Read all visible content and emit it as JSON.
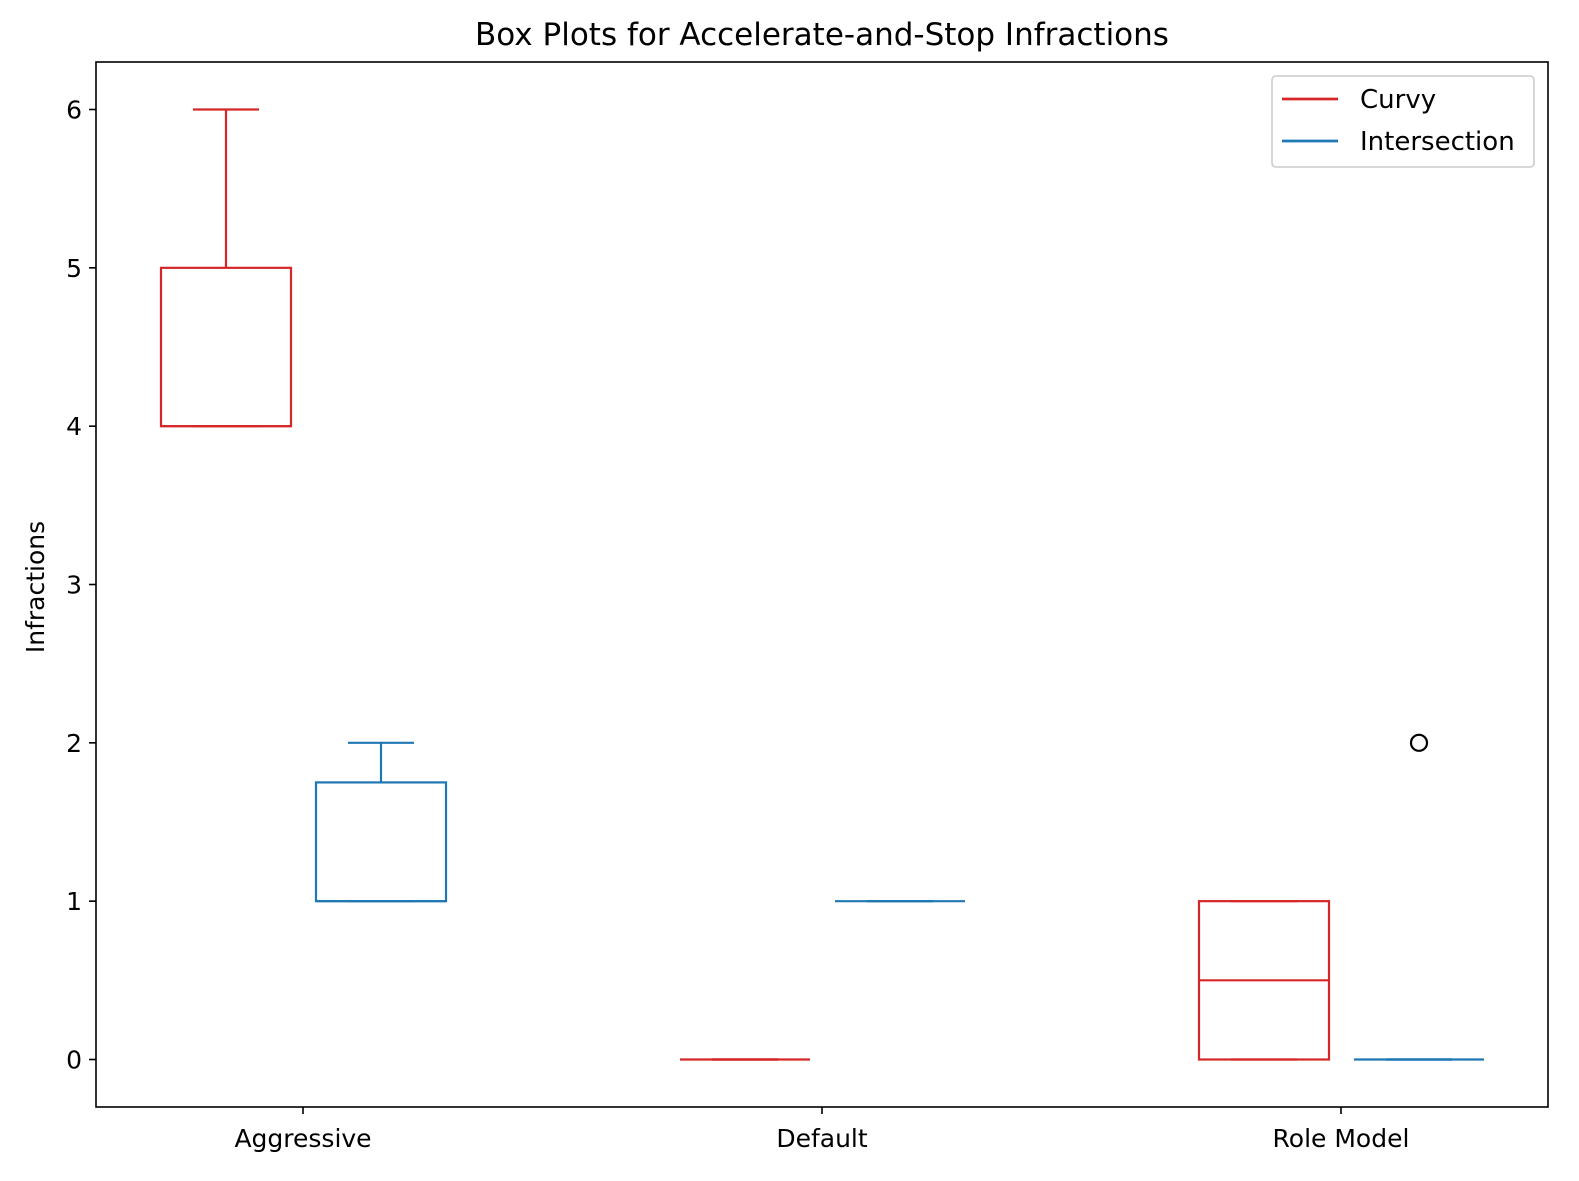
{
  "chart_data": {
    "type": "box",
    "title": "Box Plots for Accelerate-and-Stop Infractions",
    "xlabel": "",
    "ylabel": "Infractions",
    "categories": [
      "Aggressive",
      "Default",
      "Role Model"
    ],
    "yticks": [
      0,
      1,
      2,
      3,
      4,
      5,
      6
    ],
    "ylim": [
      -0.3,
      6.3
    ],
    "grid": false,
    "legend_position": "top-right",
    "series": [
      {
        "name": "Curvy",
        "color": "#d62728",
        "boxes": [
          {
            "category": "Aggressive",
            "whisker_low": 4,
            "q1": 4,
            "median": 4,
            "q3": 5,
            "whisker_high": 6,
            "outliers": []
          },
          {
            "category": "Default",
            "whisker_low": 0,
            "q1": 0,
            "median": 0,
            "q3": 0,
            "whisker_high": 0,
            "outliers": []
          },
          {
            "category": "Role Model",
            "whisker_low": 0,
            "q1": 0,
            "median": 0.5,
            "q3": 1,
            "whisker_high": 1,
            "outliers": []
          }
        ]
      },
      {
        "name": "Intersection",
        "color": "#1f77b4",
        "boxes": [
          {
            "category": "Aggressive",
            "whisker_low": 1,
            "q1": 1,
            "median": 1,
            "q3": 1.75,
            "whisker_high": 2,
            "outliers": []
          },
          {
            "category": "Default",
            "whisker_low": 1,
            "q1": 1,
            "median": 1,
            "q3": 1,
            "whisker_high": 1,
            "outliers": []
          },
          {
            "category": "Role Model",
            "whisker_low": 0,
            "q1": 0,
            "median": 0,
            "q3": 0,
            "whisker_high": 0,
            "outliers": [
              2
            ]
          }
        ]
      }
    ]
  }
}
